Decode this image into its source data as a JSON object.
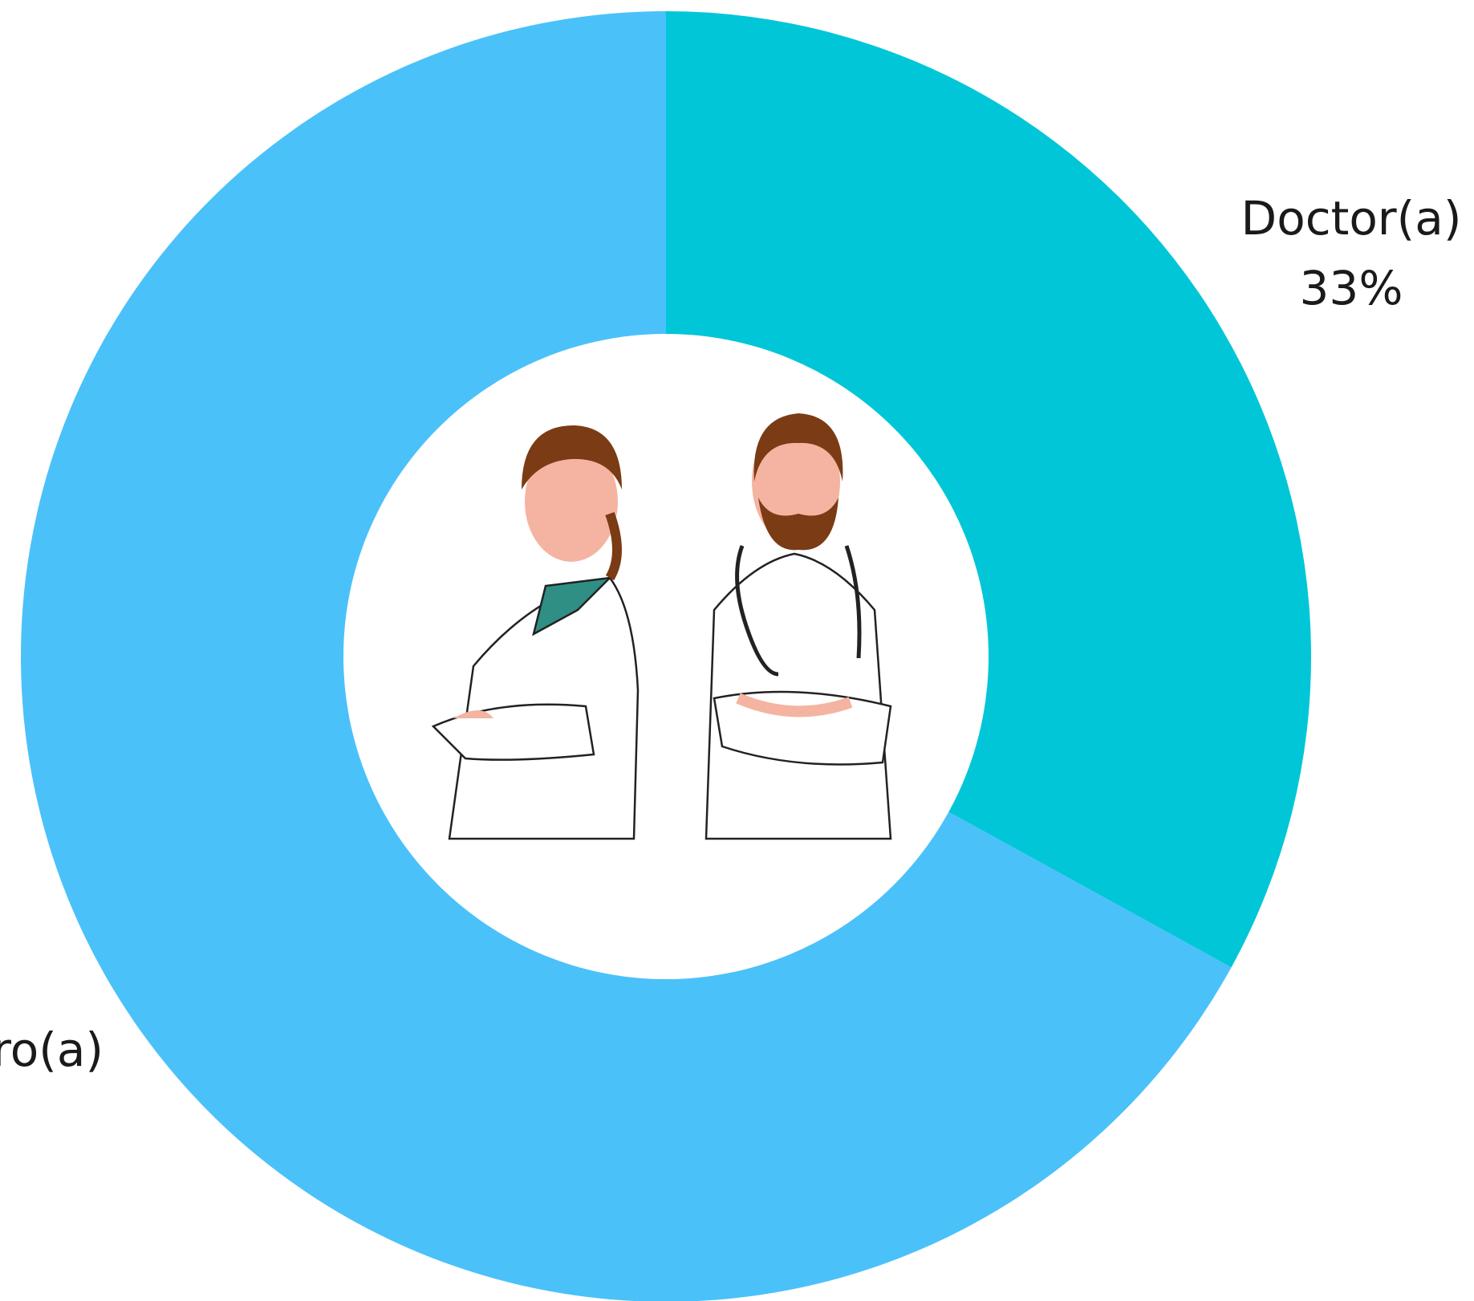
{
  "chart_data": {
    "type": "donut",
    "categories": [
      "Doctor(a)",
      "ro(a)"
    ],
    "values": [
      33,
      67
    ],
    "value_labels": [
      "33%",
      null
    ],
    "colors": [
      "#00c6d8",
      "#4bc1f9"
    ]
  }
}
